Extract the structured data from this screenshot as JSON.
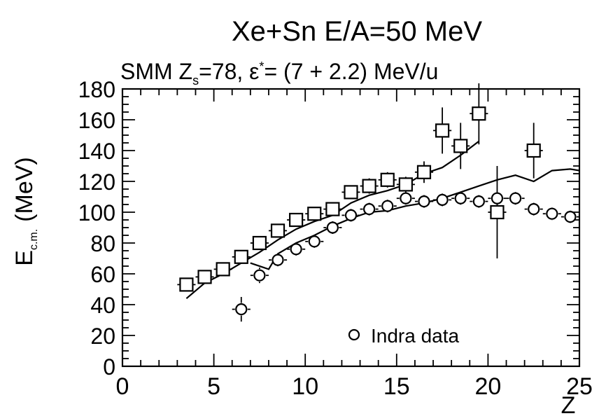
{
  "chart_data": {
    "type": "scatter",
    "title": "Xe+Sn E/A=50 MeV",
    "subtitle_parts": {
      "pre": "SMM Z",
      "sub": "s",
      "mid": "=78, ε",
      "sup": "*",
      "post": "= (7 + 2.2) MeV/u"
    },
    "xlabel": "Z",
    "ylabel_parts": {
      "main": "E",
      "sub": "c.m.",
      "unit": "(MeV)"
    },
    "xlim": [
      0,
      25
    ],
    "ylim": [
      0,
      180
    ],
    "x_ticks": [
      "0",
      "5",
      "10",
      "15",
      "20",
      "25"
    ],
    "y_ticks": [
      "0",
      "20",
      "40",
      "60",
      "80",
      "100",
      "120",
      "140",
      "160",
      "180"
    ],
    "legend": {
      "label": "Indra data",
      "placement": "bottom-right"
    },
    "series": [
      {
        "marker": "square",
        "points": [
          {
            "x": 3.5,
            "y": 53,
            "err": 3
          },
          {
            "x": 4.5,
            "y": 58,
            "err": 3
          },
          {
            "x": 5.5,
            "y": 63,
            "err": 3
          },
          {
            "x": 6.5,
            "y": 71,
            "err": 4
          },
          {
            "x": 7.5,
            "y": 80,
            "err": 4
          },
          {
            "x": 8.5,
            "y": 88,
            "err": 4
          },
          {
            "x": 9.5,
            "y": 95,
            "err": 4
          },
          {
            "x": 10.5,
            "y": 99,
            "err": 4
          },
          {
            "x": 11.5,
            "y": 102,
            "err": 4
          },
          {
            "x": 12.5,
            "y": 113,
            "err": 4
          },
          {
            "x": 13.5,
            "y": 117,
            "err": 5
          },
          {
            "x": 14.5,
            "y": 121,
            "err": 5
          },
          {
            "x": 15.5,
            "y": 118,
            "err": 5
          },
          {
            "x": 16.5,
            "y": 126,
            "err": 7
          },
          {
            "x": 17.5,
            "y": 153,
            "err": 15
          },
          {
            "x": 18.5,
            "y": 143,
            "err": 15
          },
          {
            "x": 19.5,
            "y": 164,
            "err": 20
          },
          {
            "x": 20.5,
            "y": 100,
            "err": 30
          },
          {
            "x": 22.5,
            "y": 140,
            "err": 18
          }
        ]
      },
      {
        "marker": "circle",
        "points": [
          {
            "x": 6.5,
            "y": 37,
            "err": 8
          },
          {
            "x": 7.5,
            "y": 59,
            "err": 5
          },
          {
            "x": 8.5,
            "y": 69,
            "err": 3
          },
          {
            "x": 9.5,
            "y": 76,
            "err": 3
          },
          {
            "x": 10.5,
            "y": 81,
            "err": 3
          },
          {
            "x": 11.5,
            "y": 90,
            "err": 3
          },
          {
            "x": 12.5,
            "y": 98,
            "err": 3
          },
          {
            "x": 13.5,
            "y": 102,
            "err": 3
          },
          {
            "x": 14.5,
            "y": 104,
            "err": 3
          },
          {
            "x": 15.5,
            "y": 109,
            "err": 3
          },
          {
            "x": 16.5,
            "y": 107,
            "err": 3
          },
          {
            "x": 17.5,
            "y": 108,
            "err": 3
          },
          {
            "x": 18.5,
            "y": 109,
            "err": 3
          },
          {
            "x": 19.5,
            "y": 107,
            "err": 3
          },
          {
            "x": 20.5,
            "y": 109,
            "err": 3
          },
          {
            "x": 21.5,
            "y": 109,
            "err": 3
          },
          {
            "x": 22.5,
            "y": 102,
            "err": 3
          },
          {
            "x": 23.5,
            "y": 99,
            "err": 4
          },
          {
            "x": 24.5,
            "y": 97,
            "err": 4
          }
        ]
      },
      {
        "marker": "line",
        "points": [
          {
            "x": 3.5,
            "y": 44
          },
          {
            "x": 4.5,
            "y": 54
          },
          {
            "x": 5.5,
            "y": 60
          },
          {
            "x": 6.5,
            "y": 67
          },
          {
            "x": 7.5,
            "y": 74
          },
          {
            "x": 8.5,
            "y": 82
          },
          {
            "x": 9.5,
            "y": 89
          },
          {
            "x": 10.5,
            "y": 94
          },
          {
            "x": 11.5,
            "y": 98
          },
          {
            "x": 12.5,
            "y": 106
          },
          {
            "x": 13.5,
            "y": 111
          },
          {
            "x": 14.5,
            "y": 114
          },
          {
            "x": 15.5,
            "y": 118
          },
          {
            "x": 16.5,
            "y": 125
          },
          {
            "x": 17.5,
            "y": 129
          },
          {
            "x": 18.5,
            "y": 137
          },
          {
            "x": 19.5,
            "y": 146
          }
        ]
      },
      {
        "marker": "line",
        "points": [
          {
            "x": 7.0,
            "y": 67
          },
          {
            "x": 8.0,
            "y": 63
          },
          {
            "x": 8.5,
            "y": 73
          },
          {
            "x": 9.5,
            "y": 80
          },
          {
            "x": 10.5,
            "y": 85
          },
          {
            "x": 11.5,
            "y": 91
          },
          {
            "x": 12.5,
            "y": 96
          },
          {
            "x": 13.5,
            "y": 100
          },
          {
            "x": 14.5,
            "y": 101
          },
          {
            "x": 15.5,
            "y": 104
          },
          {
            "x": 16.5,
            "y": 106
          },
          {
            "x": 17.5,
            "y": 109
          },
          {
            "x": 18.5,
            "y": 113
          },
          {
            "x": 19.5,
            "y": 117
          },
          {
            "x": 20.5,
            "y": 121
          },
          {
            "x": 21.5,
            "y": 124
          },
          {
            "x": 22.5,
            "y": 120
          },
          {
            "x": 23.5,
            "y": 127
          },
          {
            "x": 24.5,
            "y": 128
          },
          {
            "x": 25.0,
            "y": 127
          }
        ]
      }
    ]
  }
}
